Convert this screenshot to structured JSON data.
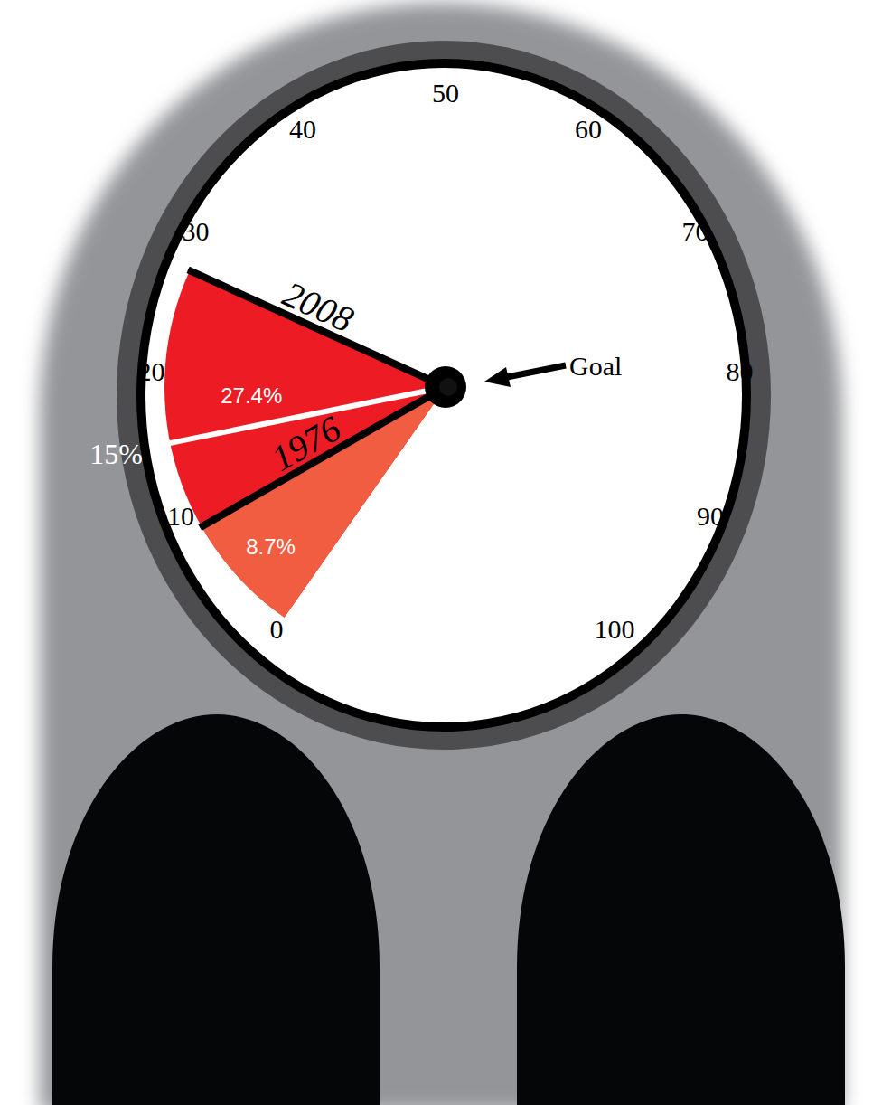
{
  "chart_data": {
    "type": "gauge",
    "xlim": [
      0,
      100
    ],
    "xticks": [
      0,
      10,
      20,
      30,
      40,
      50,
      60,
      70,
      80,
      90,
      100
    ],
    "series": [
      {
        "name": "2008",
        "values": [
          27.4
        ],
        "value_labels": [
          "27.4%"
        ],
        "color": "#ed1c24"
      },
      {
        "name": "1976",
        "values": [
          8.7
        ],
        "value_labels": [
          "8.7%"
        ],
        "color": "#f15d40"
      }
    ],
    "reference": {
      "value": 15,
      "label": "15%"
    },
    "annotations": [
      "Goal"
    ],
    "data_labels": true
  }
}
